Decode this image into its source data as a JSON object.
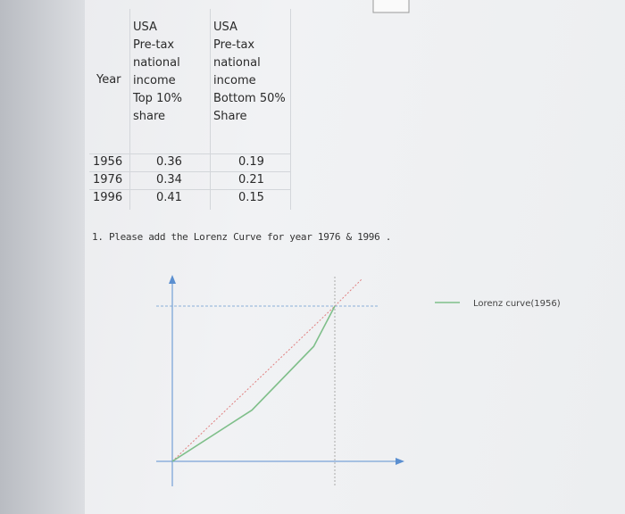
{
  "table": {
    "header": [
      [
        "Year"
      ],
      [
        "USA",
        "Pre-tax",
        "national",
        "income",
        "Top 10%",
        "share"
      ],
      [
        "USA",
        "Pre-tax",
        "national",
        "income",
        "Bottom 50%",
        "Share"
      ]
    ],
    "rows": [
      [
        "1956",
        "0.36",
        "0.19"
      ],
      [
        "1976",
        "0.34",
        "0.21"
      ],
      [
        "1996",
        "0.41",
        "0.15"
      ]
    ]
  },
  "question": "1. Please add the Lorenz Curve for year 1976 & 1996 .",
  "chart_data": {
    "type": "line",
    "x": [
      0,
      0.49,
      0.87,
      1
    ],
    "series": [
      {
        "name": "Lorenz curve(1956)",
        "color": "#7fbf8a",
        "values": [
          0,
          0.33,
          0.74,
          1
        ]
      }
    ]
  }
}
